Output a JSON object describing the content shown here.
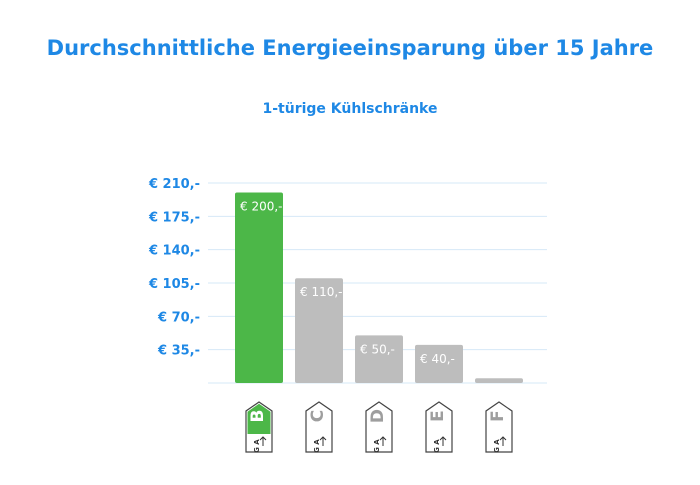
{
  "chart_data": {
    "type": "bar",
    "title": "Durchschnittliche Energieeinsparung über 15 Jahre",
    "subtitle": "1-türige Kühlschränke",
    "xlabel": "",
    "ylabel": "",
    "ylim": [
      0,
      210
    ],
    "grid": true,
    "y_ticks": [
      35,
      70,
      105,
      140,
      175,
      210
    ],
    "y_tick_labels": [
      "€ 35,-",
      "€ 70,-",
      "€ 105,-",
      "€ 140,-",
      "€ 175,-",
      "€ 210,-"
    ],
    "categories": [
      "B",
      "C",
      "D",
      "E",
      "F"
    ],
    "values": [
      200,
      110,
      50,
      40,
      5
    ],
    "data_labels": [
      "€ 200,-",
      "€ 110,-",
      "€ 50,-",
      "€ 40,-",
      ""
    ],
    "scale_text": "A",
    "scale_text_bottom": "G",
    "colors": {
      "highlight": "#4cb748",
      "bar": "#bdbdbd",
      "axis_text": "#1e88e5",
      "grid": "#d6e8f7",
      "badge_stroke": "#444444"
    }
  }
}
